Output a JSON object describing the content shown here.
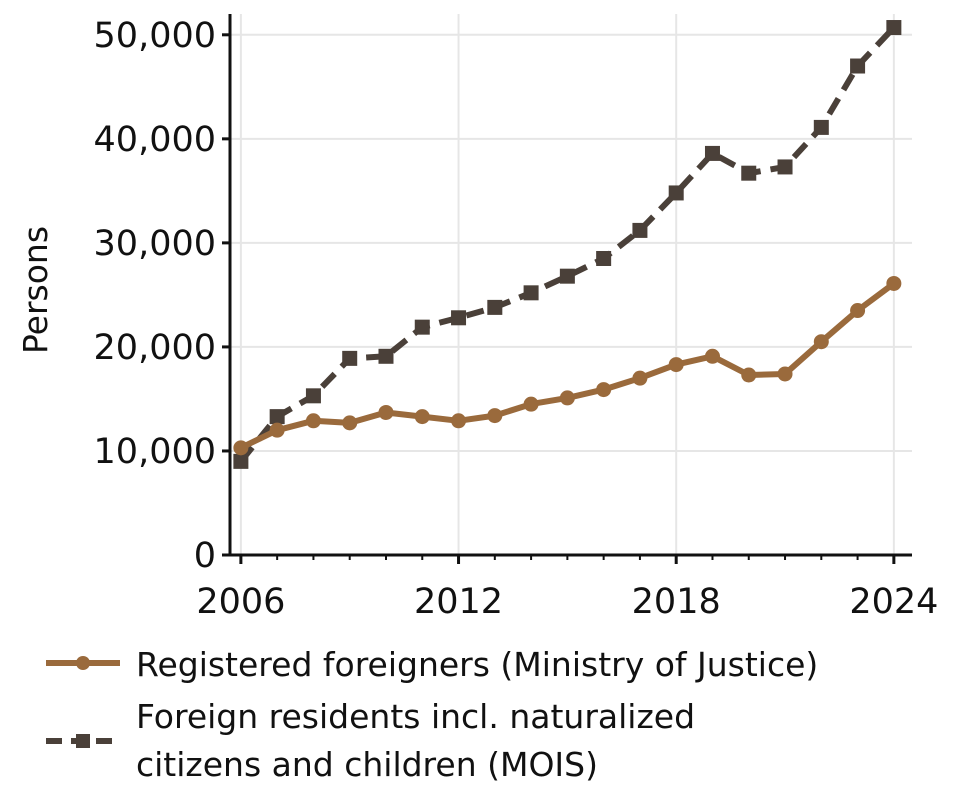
{
  "chart_data": {
    "type": "line",
    "title": "",
    "xlabel": "",
    "ylabel": "Persons",
    "xlim": [
      2006,
      2024
    ],
    "ylim": [
      0,
      52000
    ],
    "x_ticks": [
      2006,
      2012,
      2018,
      2024
    ],
    "x_tick_labels": [
      "2006",
      "2012",
      "2018",
      "2024"
    ],
    "y_ticks": [
      0,
      10000,
      20000,
      30000,
      40000,
      50000
    ],
    "y_tick_labels": [
      "0",
      "10,000",
      "20,000",
      "30,000",
      "40,000",
      "50,000"
    ],
    "grid": true,
    "legend_position": "bottom",
    "x": [
      2006,
      2007,
      2008,
      2009,
      2010,
      2011,
      2012,
      2013,
      2014,
      2015,
      2016,
      2017,
      2018,
      2019,
      2020,
      2021,
      2022,
      2023,
      2024
    ],
    "series": [
      {
        "name": "Registered foreigners (Ministry of Justice)",
        "color": "#9a6a3c",
        "marker": "circle",
        "line_style": "solid",
        "values": [
          10300,
          12000,
          12900,
          12700,
          13700,
          13300,
          12900,
          13400,
          14500,
          15100,
          15900,
          17000,
          18300,
          19100,
          17300,
          17400,
          20500,
          23500,
          26100
        ]
      },
      {
        "name_lines": [
          "Foreign residents incl. naturalized",
          "citizens and children (MOIS)"
        ],
        "color": "#4a4039",
        "marker": "square",
        "line_style": "dashed",
        "values": [
          9000,
          13300,
          15300,
          18900,
          19100,
          21900,
          22800,
          23800,
          25200,
          26800,
          28500,
          31200,
          34800,
          38600,
          36700,
          37300,
          41100,
          47000,
          50700
        ]
      }
    ]
  }
}
